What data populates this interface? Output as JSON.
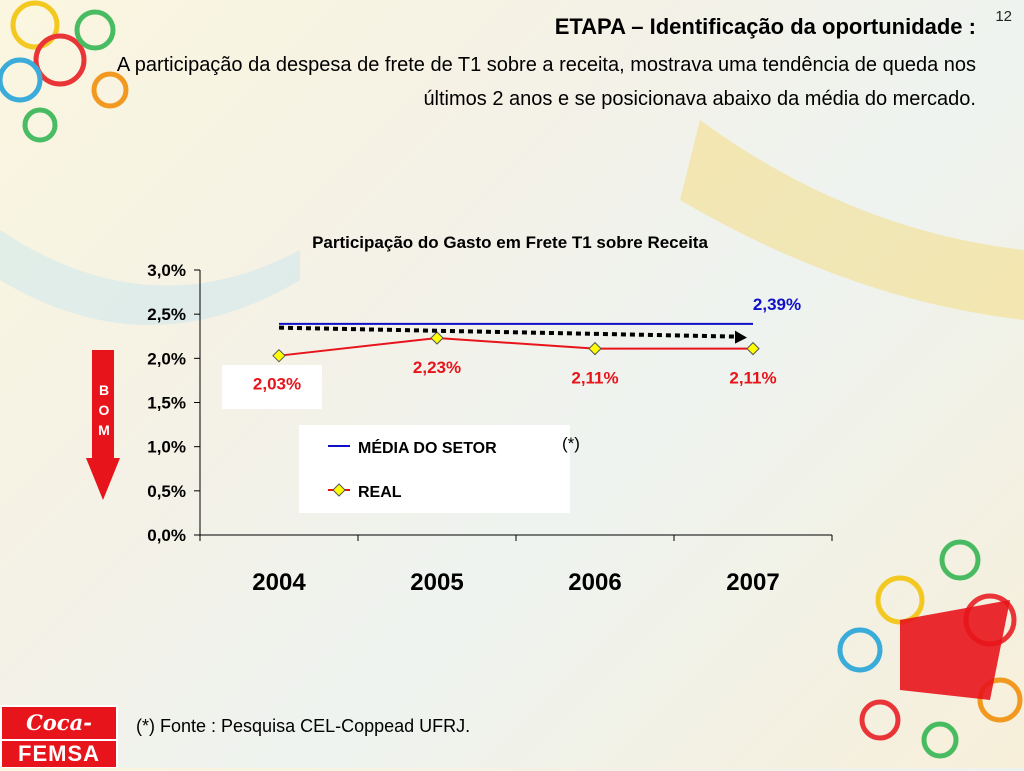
{
  "page_number": "12",
  "title": "ETAPA – Identificação da oportunidade :",
  "subtitle": "A participação da despesa de frete de T1 sobre a receita, mostrava uma tendência de queda nos últimos 2 anos e se posicionava abaixo da média do mercado.",
  "bom_indicator": {
    "letters": [
      "B",
      "O",
      "M"
    ],
    "color": "#e8141b"
  },
  "chart_data": {
    "type": "line",
    "title": "Participação do Gasto em Frete T1 sobre Receita",
    "categories": [
      "2004",
      "2005",
      "2006",
      "2007"
    ],
    "ylim": [
      0,
      3.0
    ],
    "ytick_labels": [
      "0,0%",
      "0,5%",
      "1,0%",
      "1,5%",
      "2,0%",
      "2,5%",
      "3,0%"
    ],
    "series": [
      {
        "name": "MÉDIA DO SETOR",
        "values": [
          2.39,
          2.39,
          2.39,
          2.39
        ],
        "color": "#1010c8",
        "data_labels": [
          "",
          "",
          "",
          "2,39%"
        ]
      },
      {
        "name": "REAL",
        "values": [
          2.03,
          2.23,
          2.11,
          2.11
        ],
        "color": "#e8141b",
        "marker_color": "#ffff00",
        "data_labels": [
          "2,03%",
          "2,23%",
          "2,11%",
          "2,11%"
        ]
      }
    ],
    "trendline": {
      "style": "dotted-arrow",
      "color": "#000000"
    },
    "legend_note": "(*)",
    "legend_position": "bottom-center",
    "grid": false
  },
  "footnote": "(*) Fonte : Pesquisa CEL-Coppead UFRJ.",
  "logo": {
    "top": "Coca-Cola",
    "bottom": "FEMSA"
  }
}
